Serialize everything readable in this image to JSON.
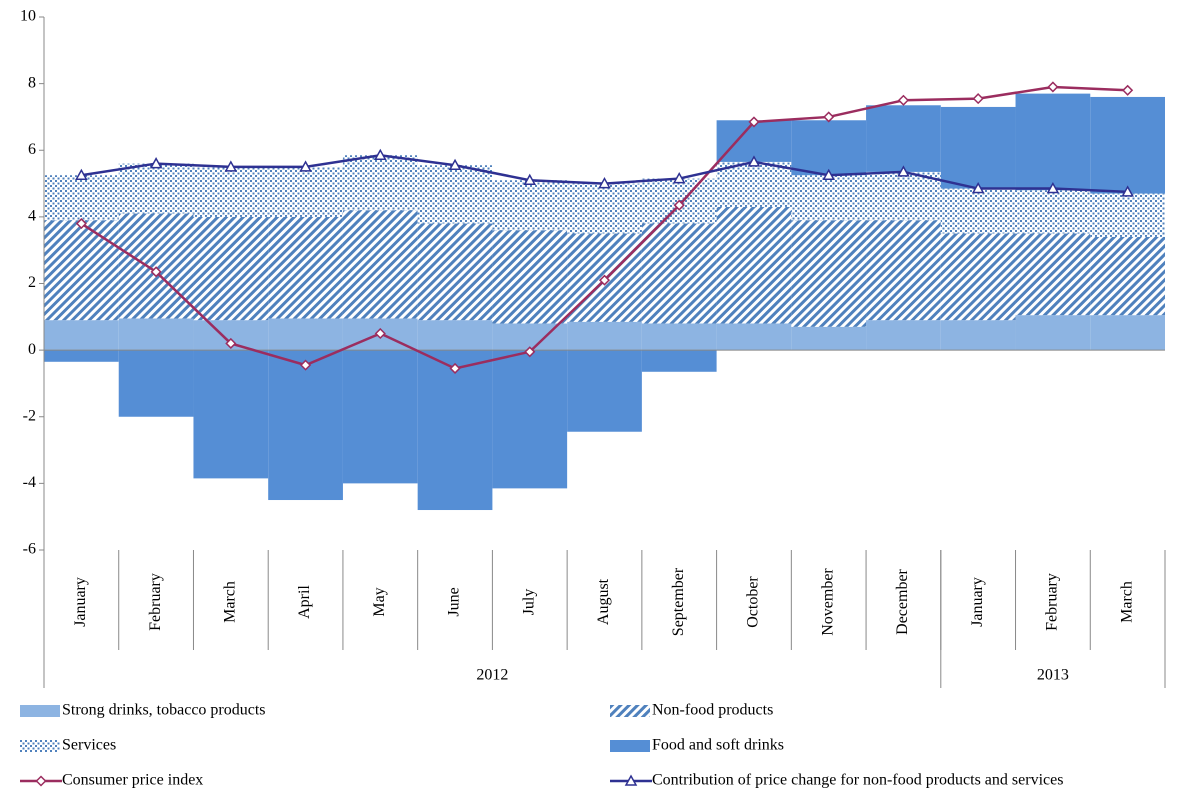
{
  "chart_data": {
    "type": "bar",
    "categories": [
      "January",
      "February",
      "March",
      "April",
      "May",
      "June",
      "July",
      "August",
      "September",
      "October",
      "November",
      "December",
      "January",
      "February",
      "March"
    ],
    "x_groups": [
      {
        "label": "2012",
        "span": 12
      },
      {
        "label": "2013",
        "span": 3
      }
    ],
    "ylim": [
      -6,
      10
    ],
    "yticks": [
      -6,
      -4,
      -2,
      0,
      2,
      4,
      6,
      8,
      10
    ],
    "series": [
      {
        "name": "Strong drinks, tobacco products",
        "type": "bar",
        "color": "#8db4e2",
        "values": [
          0.9,
          0.95,
          0.9,
          0.95,
          0.95,
          0.9,
          0.8,
          0.85,
          0.8,
          0.8,
          0.7,
          0.9,
          0.9,
          1.05,
          1.05
        ]
      },
      {
        "name": "Non-food products",
        "type": "bar",
        "color": "#4f81bd",
        "pattern": "stripes",
        "values": [
          3.0,
          3.15,
          3.1,
          3.05,
          3.25,
          2.9,
          2.8,
          2.65,
          3.0,
          3.5,
          3.2,
          3.0,
          2.6,
          2.45,
          2.35
        ]
      },
      {
        "name": "Services",
        "type": "bar",
        "color": "#4f81bd",
        "pattern": "dots",
        "values": [
          1.35,
          1.5,
          1.5,
          1.5,
          1.65,
          1.75,
          1.5,
          1.5,
          1.35,
          1.35,
          1.35,
          1.45,
          1.35,
          1.3,
          1.3
        ]
      },
      {
        "name": "Food and soft drinks",
        "type": "bar",
        "color": "#558ed5",
        "values": [
          -0.35,
          -2.0,
          -3.85,
          -4.5,
          -4.0,
          -4.8,
          -4.15,
          -2.45,
          -0.65,
          1.25,
          1.65,
          2.0,
          2.45,
          2.9,
          2.9
        ]
      },
      {
        "name": "Consumer price index",
        "type": "line",
        "color": "#9b2d5f",
        "marker": "diamond",
        "values": [
          3.8,
          2.35,
          0.2,
          -0.45,
          0.5,
          -0.55,
          -0.05,
          2.1,
          4.35,
          6.85,
          7.0,
          7.5,
          7.55,
          7.9,
          7.8
        ]
      },
      {
        "name": "Contribution of price change for non-food products and services",
        "type": "line",
        "color": "#2e3192",
        "marker": "triangle",
        "values": [
          5.25,
          5.6,
          5.5,
          5.5,
          5.85,
          5.55,
          5.1,
          5.0,
          5.15,
          5.65,
          5.25,
          5.35,
          4.85,
          4.85,
          4.75
        ]
      }
    ]
  }
}
